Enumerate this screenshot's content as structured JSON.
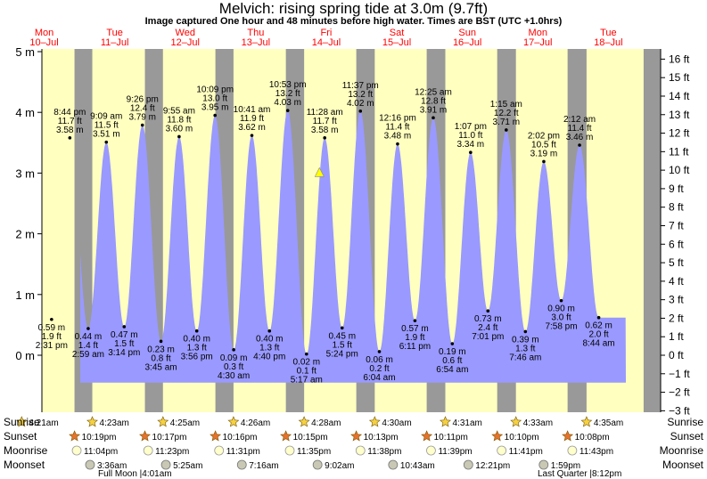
{
  "header": {
    "title": "Melvich: rising  spring tide at 3.0m (9.7ft)",
    "subtitle": "Image captured One hour and 48 minutes before high water. Times are BST (UTC +1.0hrs)"
  },
  "colors": {
    "day": "#ffffc0",
    "night": "#999999",
    "tide": "#9999ff",
    "day_label": "#ff0000",
    "now_marker": "#ffff00"
  },
  "chart_data": {
    "type": "area",
    "title": "Melvich: rising  spring tide at 3.0m (9.7ft)",
    "x_range_days": [
      "Mon 10-Jul",
      "Tue 18-Jul"
    ],
    "ylim_m": [
      -0.5,
      4.0
    ],
    "ylim_axis_m": [
      -1.0,
      5.0
    ],
    "y_left_ticks": [
      "5 m",
      "4 m",
      "3 m",
      "2 m",
      "1 m",
      "0 m"
    ],
    "y_left_tick_values": [
      5,
      4,
      3,
      2,
      1,
      0
    ],
    "y_right_ticks": [
      "16 ft",
      "15 ft",
      "14 ft",
      "13 ft",
      "12 ft",
      "11 ft",
      "10 ft",
      "9 ft",
      "8 ft",
      "7 ft",
      "6 ft",
      "5 ft",
      "4 ft",
      "3 ft",
      "2 ft",
      "1 ft",
      "0 ft",
      "−1 ft",
      "−2 ft",
      "−3 ft"
    ],
    "y_right_tick_values": [
      16,
      15,
      14,
      13,
      12,
      11,
      10,
      9,
      8,
      7,
      6,
      5,
      4,
      3,
      2,
      1,
      0,
      -1,
      -2,
      -3
    ],
    "days": [
      {
        "dow": "Mon",
        "date": "10–Jul"
      },
      {
        "dow": "Tue",
        "date": "11–Jul"
      },
      {
        "dow": "Wed",
        "date": "12–Jul"
      },
      {
        "dow": "Thu",
        "date": "13–Jul"
      },
      {
        "dow": "Fri",
        "date": "14–Jul"
      },
      {
        "dow": "Sat",
        "date": "15–Jul"
      },
      {
        "dow": "Sun",
        "date": "16–Jul"
      },
      {
        "dow": "Mon",
        "date": "17–Jul"
      },
      {
        "dow": "Tue",
        "date": "18–Jul"
      }
    ],
    "tides": [
      {
        "time": "2:31 pm",
        "day": 0,
        "hour": 14.52,
        "m": 0.59,
        "ft": "1.9 ft",
        "type": "low"
      },
      {
        "time": "8:44 pm",
        "day": 0,
        "hour": 20.73,
        "m": 3.58,
        "ft": "11.7 ft",
        "type": "high"
      },
      {
        "time": "2:59 am",
        "day": 1,
        "hour": 2.98,
        "m": 0.44,
        "ft": "1.4 ft",
        "type": "low"
      },
      {
        "time": "9:09 am",
        "day": 1,
        "hour": 9.15,
        "m": 3.51,
        "ft": "11.5 ft",
        "type": "high"
      },
      {
        "time": "3:14 pm",
        "day": 1,
        "hour": 15.23,
        "m": 0.47,
        "ft": "1.5 ft",
        "type": "low"
      },
      {
        "time": "9:26 pm",
        "day": 1,
        "hour": 21.43,
        "m": 3.79,
        "ft": "12.4 ft",
        "type": "high"
      },
      {
        "time": "3:45 am",
        "day": 2,
        "hour": 3.75,
        "m": 0.23,
        "ft": "0.8 ft",
        "type": "low"
      },
      {
        "time": "9:55 am",
        "day": 2,
        "hour": 9.92,
        "m": 3.6,
        "ft": "11.8 ft",
        "type": "high"
      },
      {
        "time": "3:56 pm",
        "day": 2,
        "hour": 15.93,
        "m": 0.4,
        "ft": "1.3 ft",
        "type": "low"
      },
      {
        "time": "10:09 pm",
        "day": 2,
        "hour": 22.15,
        "m": 3.95,
        "ft": "13.0 ft",
        "type": "high"
      },
      {
        "time": "4:30 am",
        "day": 3,
        "hour": 4.5,
        "m": 0.09,
        "ft": "0.3 ft",
        "type": "low"
      },
      {
        "time": "10:41 am",
        "day": 3,
        "hour": 10.68,
        "m": 3.62,
        "ft": "11.9 ft",
        "type": "high"
      },
      {
        "time": "4:40 pm",
        "day": 3,
        "hour": 16.67,
        "m": 0.4,
        "ft": "1.3 ft",
        "type": "low"
      },
      {
        "time": "10:53 pm",
        "day": 3,
        "hour": 22.88,
        "m": 4.03,
        "ft": "13.2 ft",
        "type": "high"
      },
      {
        "time": "5:17 am",
        "day": 4,
        "hour": 5.28,
        "m": 0.02,
        "ft": "0.1 ft",
        "type": "low"
      },
      {
        "time": "11:28 am",
        "day": 4,
        "hour": 11.47,
        "m": 3.58,
        "ft": "11.7 ft",
        "type": "high"
      },
      {
        "time": "5:24 pm",
        "day": 4,
        "hour": 17.4,
        "m": 0.45,
        "ft": "1.5 ft",
        "type": "low"
      },
      {
        "time": "11:37 pm",
        "day": 4,
        "hour": 23.62,
        "m": 4.02,
        "ft": "13.2 ft",
        "type": "high"
      },
      {
        "time": "6:04 am",
        "day": 5,
        "hour": 6.07,
        "m": 0.06,
        "ft": "0.2 ft",
        "type": "low"
      },
      {
        "time": "12:16 pm",
        "day": 5,
        "hour": 12.27,
        "m": 3.48,
        "ft": "11.4 ft",
        "type": "high"
      },
      {
        "time": "6:11 pm",
        "day": 5,
        "hour": 18.18,
        "m": 0.57,
        "ft": "1.9 ft",
        "type": "low"
      },
      {
        "time": "12:25 am",
        "day": 6,
        "hour": 0.42,
        "m": 3.91,
        "ft": "12.8 ft",
        "type": "high"
      },
      {
        "time": "6:54 am",
        "day": 6,
        "hour": 6.9,
        "m": 0.19,
        "ft": "0.6 ft",
        "type": "low"
      },
      {
        "time": "1:07 pm",
        "day": 6,
        "hour": 13.12,
        "m": 3.34,
        "ft": "11.0 ft",
        "type": "high"
      },
      {
        "time": "7:01 pm",
        "day": 6,
        "hour": 19.02,
        "m": 0.73,
        "ft": "2.4 ft",
        "type": "low"
      },
      {
        "time": "1:15 am",
        "day": 7,
        "hour": 1.25,
        "m": 3.71,
        "ft": "12.2 ft",
        "type": "high"
      },
      {
        "time": "7:46 am",
        "day": 7,
        "hour": 7.77,
        "m": 0.39,
        "ft": "1.3 ft",
        "type": "low"
      },
      {
        "time": "2:02 pm",
        "day": 7,
        "hour": 14.03,
        "m": 3.19,
        "ft": "10.5 ft",
        "type": "high"
      },
      {
        "time": "7:58 pm",
        "day": 7,
        "hour": 19.97,
        "m": 0.9,
        "ft": "3.0 ft",
        "type": "low"
      },
      {
        "time": "2:12 am",
        "day": 8,
        "hour": 2.2,
        "m": 3.46,
        "ft": "11.4 ft",
        "type": "high"
      },
      {
        "time": "8:44 am",
        "day": 8,
        "hour": 8.73,
        "m": 0.62,
        "ft": "2.0 ft",
        "type": "low"
      }
    ],
    "start_level_m": 3.05,
    "now": {
      "day": 4,
      "hour": 9.67,
      "m": 3.0
    },
    "sunrise": [
      "4:21am",
      "4:23am",
      "4:25am",
      "4:26am",
      "4:28am",
      "4:30am",
      "4:31am",
      "4:33am",
      "4:35am"
    ],
    "sunrise_hours": [
      4.35,
      4.38,
      4.42,
      4.43,
      4.47,
      4.5,
      4.52,
      4.55,
      4.58
    ],
    "sunset": [
      "10:19pm",
      "10:17pm",
      "10:16pm",
      "10:15pm",
      "10:13pm",
      "10:11pm",
      "10:10pm",
      "10:08pm"
    ],
    "sunset_hours": [
      22.32,
      22.28,
      22.27,
      22.25,
      22.22,
      22.18,
      22.17,
      22.13
    ],
    "moonrise": [
      "11:04pm",
      "11:23pm",
      "11:31pm",
      "11:35pm",
      "11:38pm",
      "11:39pm",
      "11:41pm",
      "11:43pm"
    ],
    "moonrise_hours": [
      23.07,
      23.38,
      23.52,
      23.58,
      23.63,
      23.65,
      23.68,
      23.72
    ],
    "moonset": [
      {
        "day": 1,
        "time": "3:36am"
      },
      {
        "day": 2,
        "time": "5:25am"
      },
      {
        "day": 3,
        "time": "7:16am"
      },
      {
        "day": 4,
        "time": "9:02am"
      },
      {
        "day": 5,
        "time": "10:43am"
      },
      {
        "day": 6,
        "time": "12:21pm"
      },
      {
        "day": 7,
        "time": "1:59pm"
      }
    ],
    "moonset_hours": [
      3.6,
      5.42,
      7.27,
      9.03,
      10.72,
      12.35,
      13.98
    ],
    "phases": [
      "Full Moon |4:01am",
      "Last Quarter |8:12pm"
    ]
  },
  "rows": {
    "sunrise": "Sunrise",
    "sunset": "Sunset",
    "moonrise": "Moonrise",
    "moonset": "Moonset"
  }
}
